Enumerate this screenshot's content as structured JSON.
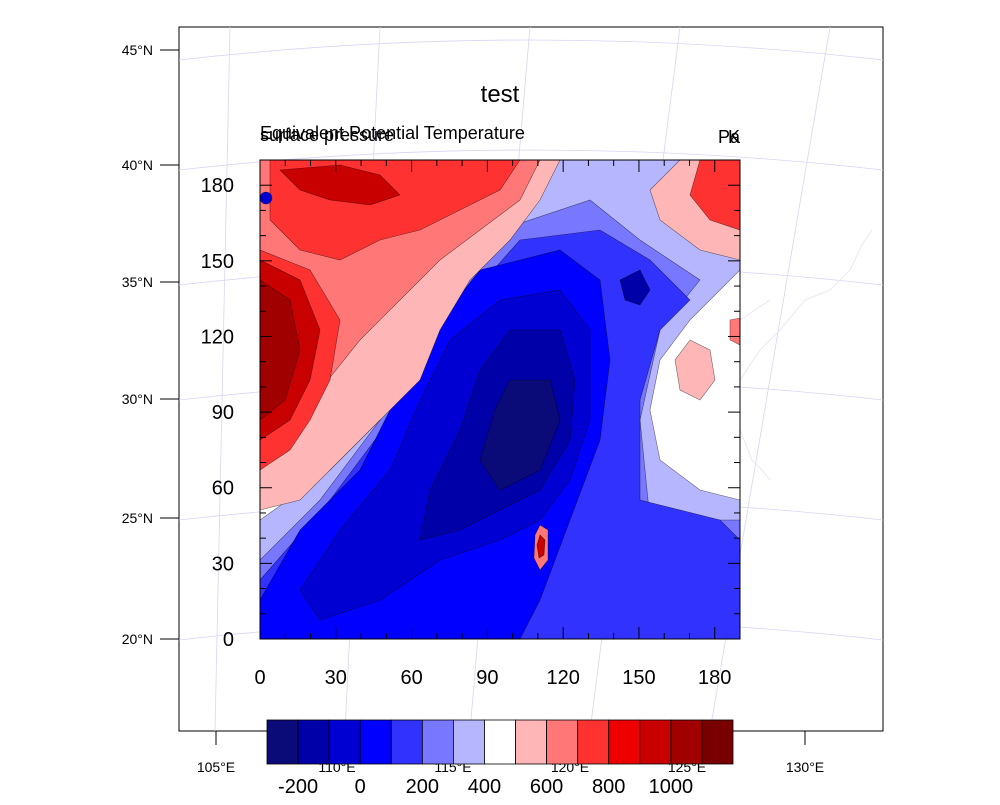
{
  "chart_data": {
    "type": "heatmap",
    "title": "test",
    "left_string": "Equivalent Potential Temperature",
    "left_string_overlap": "surface pressure",
    "right_string": "K",
    "right_string_overlap": "Pa",
    "map_lat_labels": [
      "20°N",
      "25°N",
      "30°N",
      "35°N",
      "40°N",
      "45°N"
    ],
    "map_lon_labels": [
      "105°E",
      "110°E",
      "115°E",
      "120°E",
      "125°E",
      "130°E"
    ],
    "x_ticks": [
      "0",
      "30",
      "60",
      "90",
      "120",
      "150",
      "180"
    ],
    "y_ticks": [
      "0",
      "30",
      "60",
      "90",
      "120",
      "150",
      "180"
    ],
    "xlim": [
      0,
      190
    ],
    "ylim": [
      0,
      190
    ],
    "colorbar": {
      "colors": [
        "#0a0a78",
        "#0000a8",
        "#0000d2",
        "#0000ff",
        "#3232ff",
        "#7777ff",
        "#b6b6ff",
        "#ffffff",
        "#ffb6b6",
        "#ff7777",
        "#ff3232",
        "#ee0000",
        "#c80000",
        "#a00000",
        "#780000"
      ],
      "labels": [
        "-200",
        "0",
        "200",
        "400",
        "600",
        "800",
        "1000"
      ]
    }
  }
}
